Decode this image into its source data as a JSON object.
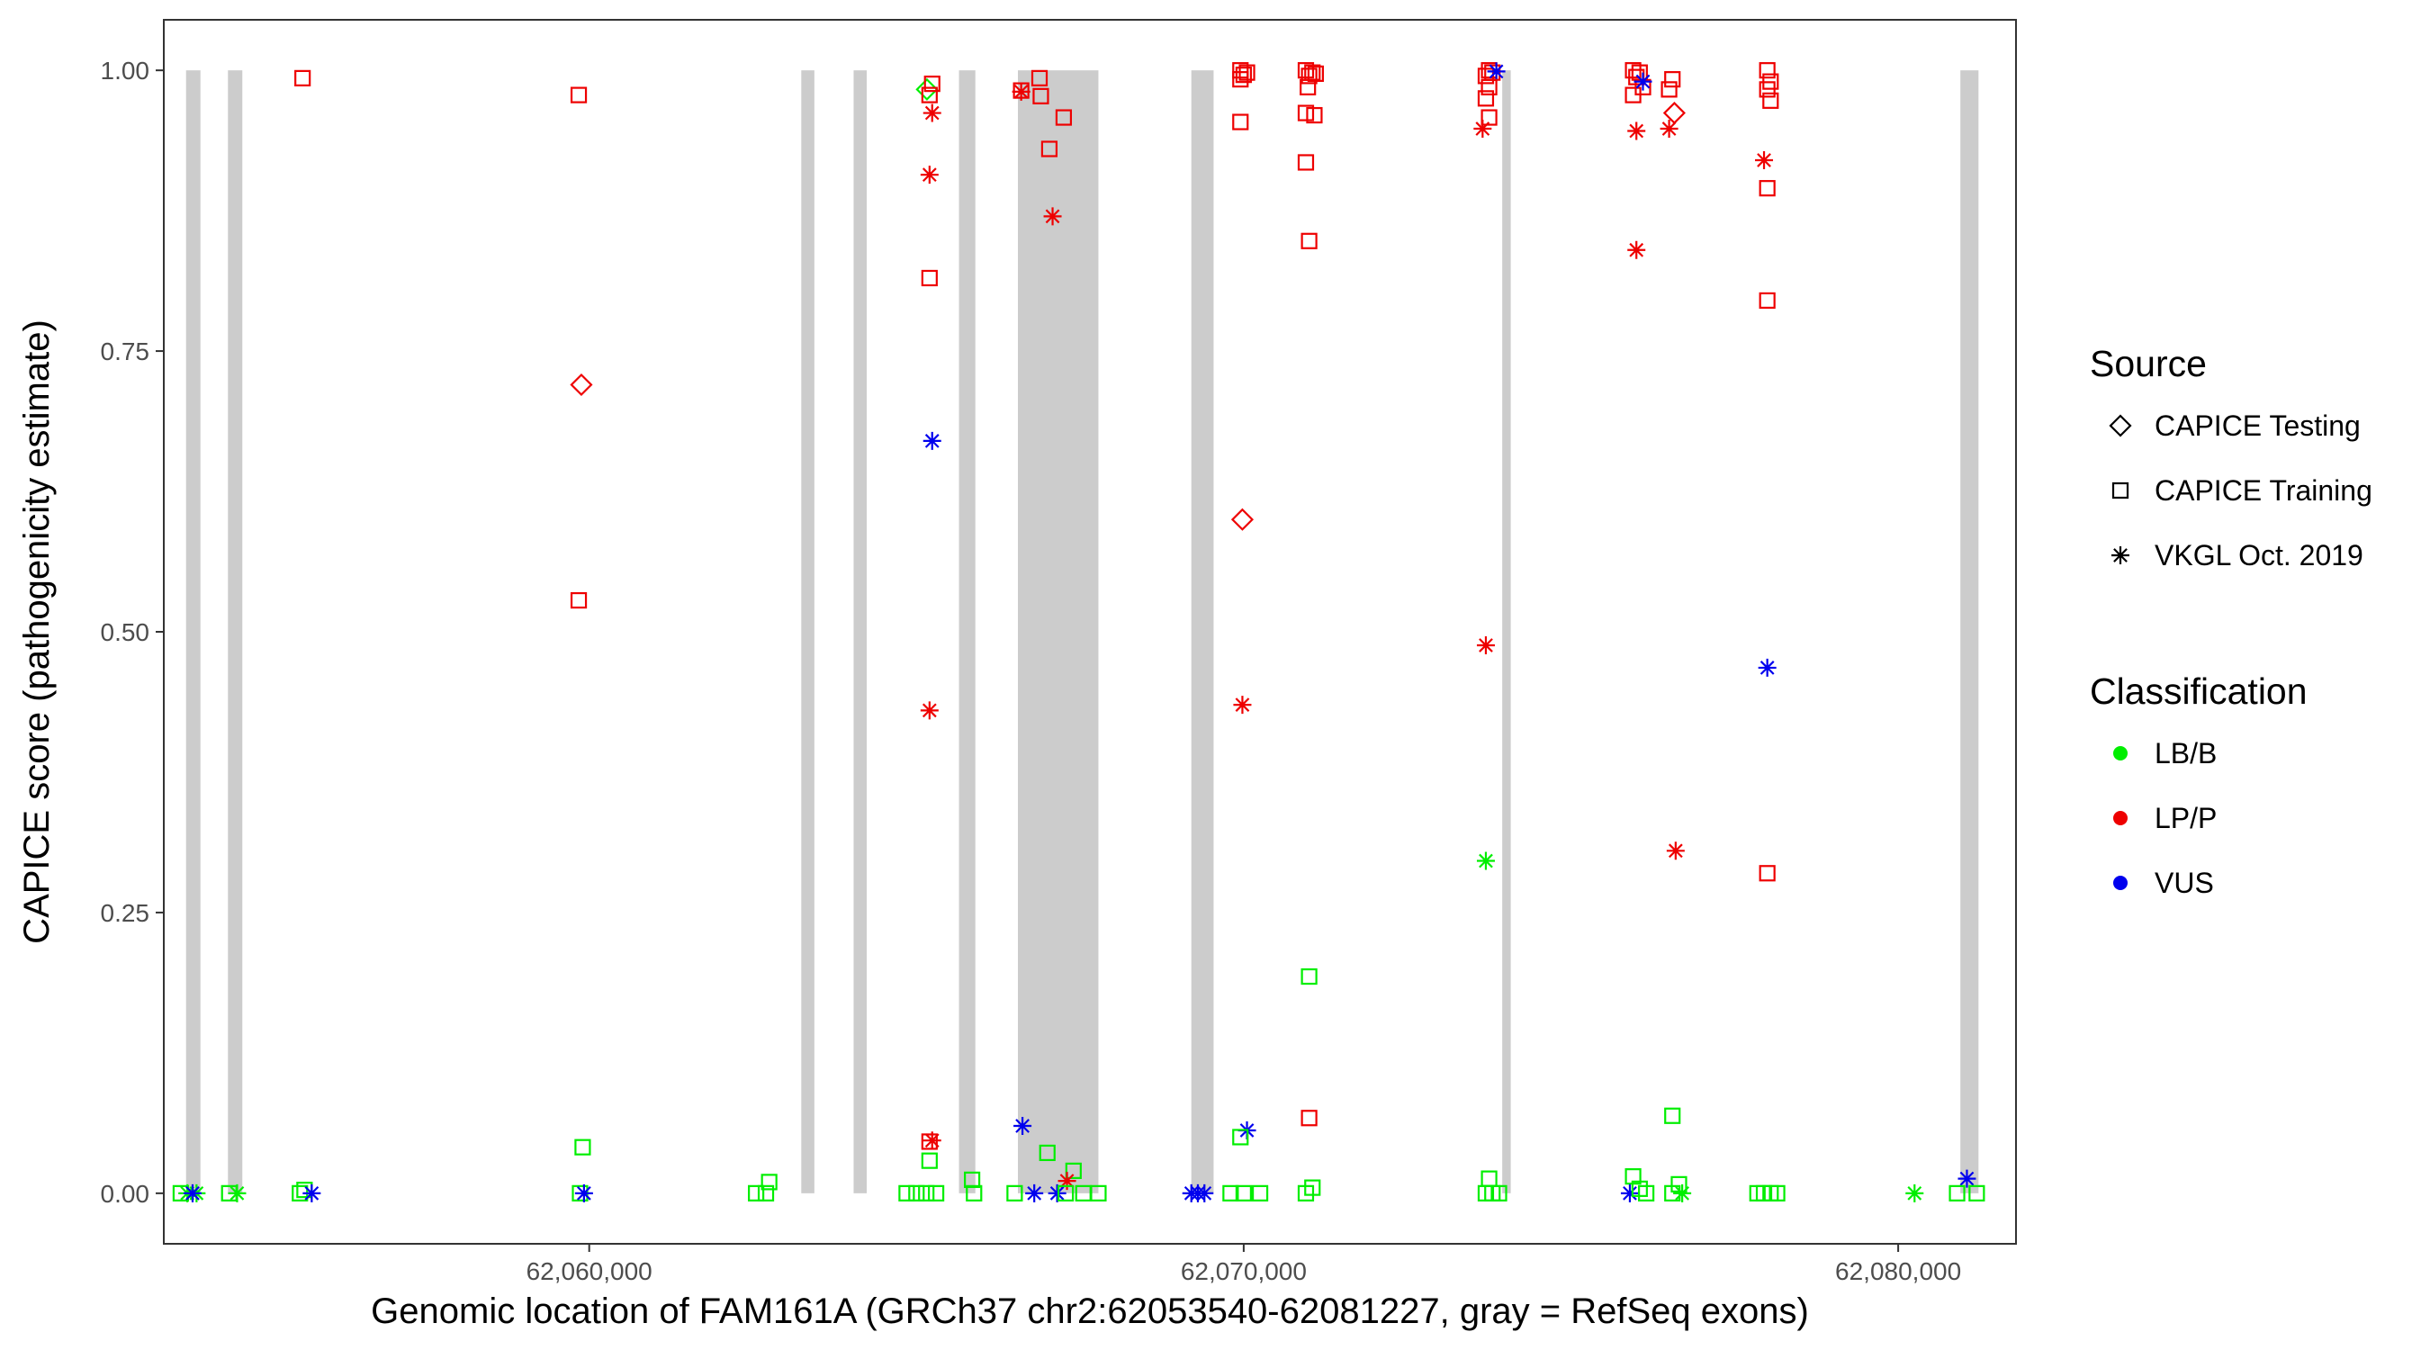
{
  "chart_data": {
    "type": "scatter",
    "xlabel": "Genomic location of FAM161A (GRCh37 chr2:62053540-62081227, gray = RefSeq exons)",
    "ylabel": "CAPICE score (pathogenicity estimate)",
    "xlim": [
      62053500,
      62081800
    ],
    "ylim": [
      -0.045,
      1.045
    ],
    "x_ticks": [
      62060000,
      62070000,
      62080000
    ],
    "x_tick_labels": [
      "62,060,000",
      "62,070,000",
      "62,080,000"
    ],
    "y_ticks": [
      0,
      0.25,
      0.5,
      0.75,
      1
    ],
    "y_tick_labels": [
      "0.00",
      "0.25",
      "0.50",
      "0.75",
      "1.00"
    ],
    "grid": false,
    "exon_color": "#cccccc",
    "exons": [
      [
        62053840,
        62054060
      ],
      [
        62054480,
        62054700
      ],
      [
        62063240,
        62063440
      ],
      [
        62064040,
        62064240
      ],
      [
        62065650,
        62065900
      ],
      [
        62066550,
        62067780
      ],
      [
        62069200,
        62069540
      ],
      [
        62073950,
        62074080
      ],
      [
        62080950,
        62081227
      ]
    ],
    "legends": {
      "source": {
        "title": "Source",
        "items": [
          {
            "label": "CAPICE Testing",
            "shape": "diamond"
          },
          {
            "label": "CAPICE Training",
            "shape": "square"
          },
          {
            "label": "VKGL Oct. 2019",
            "shape": "asterisk"
          }
        ]
      },
      "classification": {
        "title": "Classification",
        "items": [
          {
            "label": "LB/B",
            "color": "#00ee00"
          },
          {
            "label": "LP/P",
            "color": "#ee0000"
          },
          {
            "label": "VUS",
            "color": "#0000ee"
          }
        ]
      }
    },
    "classification_colors": {
      "LB/B": "#00ee00",
      "LP/P": "#ee0000",
      "VUS": "#0000ee"
    },
    "points": [
      {
        "x": 62055620,
        "y": 0.993,
        "cls": "LP/P",
        "src": "square"
      },
      {
        "x": 62059840,
        "y": 0.978,
        "cls": "LP/P",
        "src": "square"
      },
      {
        "x": 62059880,
        "y": 0.72,
        "cls": "LP/P",
        "src": "diamond"
      },
      {
        "x": 62059840,
        "y": 0.528,
        "cls": "LP/P",
        "src": "square"
      },
      {
        "x": 62059900,
        "y": 0.041,
        "cls": "LB/B",
        "src": "square"
      },
      {
        "x": 62065160,
        "y": 0.983,
        "cls": "LB/B",
        "src": "diamond"
      },
      {
        "x": 62065240,
        "y": 0.988,
        "cls": "LP/P",
        "src": "square"
      },
      {
        "x": 62065200,
        "y": 0.978,
        "cls": "LP/P",
        "src": "square"
      },
      {
        "x": 62065240,
        "y": 0.962,
        "cls": "LP/P",
        "src": "asterisk"
      },
      {
        "x": 62065200,
        "y": 0.907,
        "cls": "LP/P",
        "src": "asterisk"
      },
      {
        "x": 62065200,
        "y": 0.815,
        "cls": "LP/P",
        "src": "square"
      },
      {
        "x": 62065240,
        "y": 0.67,
        "cls": "VUS",
        "src": "asterisk"
      },
      {
        "x": 62065200,
        "y": 0.43,
        "cls": "LP/P",
        "src": "asterisk"
      },
      {
        "x": 62065240,
        "y": 0.047,
        "cls": "LP/P",
        "src": "asterisk"
      },
      {
        "x": 62065200,
        "y": 0.046,
        "cls": "LP/P",
        "src": "square"
      },
      {
        "x": 62065200,
        "y": 0.029,
        "cls": "LB/B",
        "src": "square"
      },
      {
        "x": 62066600,
        "y": 0.981,
        "cls": "LP/P",
        "src": "asterisk"
      },
      {
        "x": 62066600,
        "y": 0.982,
        "cls": "LP/P",
        "src": "square"
      },
      {
        "x": 62066880,
        "y": 0.993,
        "cls": "LP/P",
        "src": "square"
      },
      {
        "x": 62066900,
        "y": 0.977,
        "cls": "LP/P",
        "src": "square"
      },
      {
        "x": 62067250,
        "y": 0.958,
        "cls": "LP/P",
        "src": "square"
      },
      {
        "x": 62067030,
        "y": 0.93,
        "cls": "LP/P",
        "src": "square"
      },
      {
        "x": 62067080,
        "y": 0.87,
        "cls": "LP/P",
        "src": "asterisk"
      },
      {
        "x": 62066620,
        "y": 0.06,
        "cls": "VUS",
        "src": "asterisk"
      },
      {
        "x": 62067000,
        "y": 0.036,
        "cls": "LB/B",
        "src": "square"
      },
      {
        "x": 62067400,
        "y": 0.02,
        "cls": "LB/B",
        "src": "square"
      },
      {
        "x": 62067300,
        "y": 0.011,
        "cls": "LP/P",
        "src": "asterisk"
      },
      {
        "x": 62069950,
        "y": 1.0,
        "cls": "LP/P",
        "src": "square"
      },
      {
        "x": 62070000,
        "y": 0.996,
        "cls": "LP/P",
        "src": "square"
      },
      {
        "x": 62069950,
        "y": 0.992,
        "cls": "LP/P",
        "src": "square"
      },
      {
        "x": 62070050,
        "y": 0.998,
        "cls": "LP/P",
        "src": "square"
      },
      {
        "x": 62069950,
        "y": 0.954,
        "cls": "LP/P",
        "src": "square"
      },
      {
        "x": 62069980,
        "y": 0.6,
        "cls": "LP/P",
        "src": "diamond"
      },
      {
        "x": 62069980,
        "y": 0.435,
        "cls": "LP/P",
        "src": "asterisk"
      },
      {
        "x": 62070050,
        "y": 0.056,
        "cls": "VUS",
        "src": "asterisk"
      },
      {
        "x": 62069950,
        "y": 0.05,
        "cls": "LB/B",
        "src": "square"
      },
      {
        "x": 62070950,
        "y": 1.0,
        "cls": "LP/P",
        "src": "square"
      },
      {
        "x": 62071050,
        "y": 0.998,
        "cls": "LP/P",
        "src": "square"
      },
      {
        "x": 62071000,
        "y": 0.995,
        "cls": "LP/P",
        "src": "square"
      },
      {
        "x": 62071100,
        "y": 0.997,
        "cls": "LP/P",
        "src": "square"
      },
      {
        "x": 62070980,
        "y": 0.985,
        "cls": "LP/P",
        "src": "square"
      },
      {
        "x": 62070950,
        "y": 0.962,
        "cls": "LP/P",
        "src": "square"
      },
      {
        "x": 62071080,
        "y": 0.96,
        "cls": "LP/P",
        "src": "square"
      },
      {
        "x": 62070950,
        "y": 0.918,
        "cls": "LP/P",
        "src": "square"
      },
      {
        "x": 62071000,
        "y": 0.848,
        "cls": "LP/P",
        "src": "square"
      },
      {
        "x": 62071000,
        "y": 0.193,
        "cls": "LB/B",
        "src": "square"
      },
      {
        "x": 62071000,
        "y": 0.067,
        "cls": "LP/P",
        "src": "square"
      },
      {
        "x": 62073750,
        "y": 1.0,
        "cls": "LP/P",
        "src": "square"
      },
      {
        "x": 62073800,
        "y": 0.998,
        "cls": "LP/P",
        "src": "square"
      },
      {
        "x": 62073700,
        "y": 0.995,
        "cls": "LP/P",
        "src": "square"
      },
      {
        "x": 62073860,
        "y": 0.999,
        "cls": "VUS",
        "src": "asterisk"
      },
      {
        "x": 62073750,
        "y": 0.985,
        "cls": "LP/P",
        "src": "square"
      },
      {
        "x": 62073700,
        "y": 0.975,
        "cls": "LP/P",
        "src": "square"
      },
      {
        "x": 62073750,
        "y": 0.958,
        "cls": "LP/P",
        "src": "square"
      },
      {
        "x": 62073650,
        "y": 0.948,
        "cls": "LP/P",
        "src": "asterisk"
      },
      {
        "x": 62073700,
        "y": 0.488,
        "cls": "LP/P",
        "src": "asterisk"
      },
      {
        "x": 62073700,
        "y": 0.296,
        "cls": "LB/B",
        "src": "asterisk"
      },
      {
        "x": 62073750,
        "y": 0.013,
        "cls": "LB/B",
        "src": "square"
      },
      {
        "x": 62075950,
        "y": 1.0,
        "cls": "LP/P",
        "src": "square"
      },
      {
        "x": 62076050,
        "y": 0.998,
        "cls": "LP/P",
        "src": "square"
      },
      {
        "x": 62076000,
        "y": 0.994,
        "cls": "LP/P",
        "src": "square"
      },
      {
        "x": 62076100,
        "y": 0.985,
        "cls": "LP/P",
        "src": "square"
      },
      {
        "x": 62075950,
        "y": 0.978,
        "cls": "LP/P",
        "src": "square"
      },
      {
        "x": 62076100,
        "y": 0.99,
        "cls": "VUS",
        "src": "asterisk"
      },
      {
        "x": 62076000,
        "y": 0.946,
        "cls": "LP/P",
        "src": "asterisk"
      },
      {
        "x": 62076000,
        "y": 0.84,
        "cls": "LP/P",
        "src": "asterisk"
      },
      {
        "x": 62076550,
        "y": 0.992,
        "cls": "LP/P",
        "src": "square"
      },
      {
        "x": 62076500,
        "y": 0.983,
        "cls": "LP/P",
        "src": "square"
      },
      {
        "x": 62076580,
        "y": 0.962,
        "cls": "LP/P",
        "src": "diamond"
      },
      {
        "x": 62076500,
        "y": 0.948,
        "cls": "LP/P",
        "src": "asterisk"
      },
      {
        "x": 62076600,
        "y": 0.305,
        "cls": "LP/P",
        "src": "asterisk"
      },
      {
        "x": 62076550,
        "y": 0.069,
        "cls": "LB/B",
        "src": "square"
      },
      {
        "x": 62075950,
        "y": 0.015,
        "cls": "LB/B",
        "src": "square"
      },
      {
        "x": 62078000,
        "y": 1.0,
        "cls": "LP/P",
        "src": "square"
      },
      {
        "x": 62078050,
        "y": 0.99,
        "cls": "LP/P",
        "src": "square"
      },
      {
        "x": 62078000,
        "y": 0.983,
        "cls": "LP/P",
        "src": "square"
      },
      {
        "x": 62078050,
        "y": 0.973,
        "cls": "LP/P",
        "src": "square"
      },
      {
        "x": 62077950,
        "y": 0.92,
        "cls": "LP/P",
        "src": "asterisk"
      },
      {
        "x": 62078000,
        "y": 0.895,
        "cls": "LP/P",
        "src": "square"
      },
      {
        "x": 62078000,
        "y": 0.795,
        "cls": "LP/P",
        "src": "square"
      },
      {
        "x": 62078000,
        "y": 0.468,
        "cls": "VUS",
        "src": "asterisk"
      },
      {
        "x": 62078000,
        "y": 0.285,
        "cls": "LP/P",
        "src": "square"
      },
      {
        "x": 62081050,
        "y": 0.013,
        "cls": "VUS",
        "src": "asterisk"
      },
      {
        "x": 62053760,
        "y": 0.0,
        "cls": "LB/B",
        "src": "square"
      },
      {
        "x": 62053860,
        "y": 0.0,
        "cls": "LB/B",
        "src": "asterisk"
      },
      {
        "x": 62054000,
        "y": 0.0,
        "cls": "LB/B",
        "src": "asterisk"
      },
      {
        "x": 62053940,
        "y": 0.0,
        "cls": "VUS",
        "src": "asterisk"
      },
      {
        "x": 62054500,
        "y": 0.0,
        "cls": "LB/B",
        "src": "square"
      },
      {
        "x": 62054620,
        "y": 0.0,
        "cls": "LB/B",
        "src": "asterisk"
      },
      {
        "x": 62055580,
        "y": 0.0,
        "cls": "LB/B",
        "src": "square"
      },
      {
        "x": 62055650,
        "y": 0.003,
        "cls": "LB/B",
        "src": "square"
      },
      {
        "x": 62055760,
        "y": 0.0,
        "cls": "VUS",
        "src": "asterisk"
      },
      {
        "x": 62059860,
        "y": 0.0,
        "cls": "LB/B",
        "src": "square"
      },
      {
        "x": 62059920,
        "y": 0.0,
        "cls": "VUS",
        "src": "asterisk"
      },
      {
        "x": 62062550,
        "y": 0.0,
        "cls": "LB/B",
        "src": "square"
      },
      {
        "x": 62062700,
        "y": 0.0,
        "cls": "LB/B",
        "src": "square"
      },
      {
        "x": 62062750,
        "y": 0.01,
        "cls": "LB/B",
        "src": "square"
      },
      {
        "x": 62064850,
        "y": 0.0,
        "cls": "LB/B",
        "src": "square"
      },
      {
        "x": 62065000,
        "y": 0.0,
        "cls": "LB/B",
        "src": "square"
      },
      {
        "x": 62065150,
        "y": 0.0,
        "cls": "LB/B",
        "src": "square"
      },
      {
        "x": 62065300,
        "y": 0.0,
        "cls": "LB/B",
        "src": "square"
      },
      {
        "x": 62065850,
        "y": 0.012,
        "cls": "LB/B",
        "src": "square"
      },
      {
        "x": 62065880,
        "y": 0.0,
        "cls": "LB/B",
        "src": "square"
      },
      {
        "x": 62066500,
        "y": 0.0,
        "cls": "LB/B",
        "src": "square"
      },
      {
        "x": 62066800,
        "y": 0.0,
        "cls": "VUS",
        "src": "asterisk"
      },
      {
        "x": 62067150,
        "y": 0.0,
        "cls": "VUS",
        "src": "asterisk"
      },
      {
        "x": 62067280,
        "y": 0.0,
        "cls": "LB/B",
        "src": "square"
      },
      {
        "x": 62067550,
        "y": 0.0,
        "cls": "LB/B",
        "src": "square"
      },
      {
        "x": 62067780,
        "y": 0.0,
        "cls": "LB/B",
        "src": "square"
      },
      {
        "x": 62069200,
        "y": 0.0,
        "cls": "VUS",
        "src": "asterisk"
      },
      {
        "x": 62069300,
        "y": 0.0,
        "cls": "VUS",
        "src": "asterisk"
      },
      {
        "x": 62069400,
        "y": 0.0,
        "cls": "VUS",
        "src": "asterisk"
      },
      {
        "x": 62069800,
        "y": 0.0,
        "cls": "LB/B",
        "src": "square"
      },
      {
        "x": 62070000,
        "y": 0.0,
        "cls": "LB/B",
        "src": "square"
      },
      {
        "x": 62070250,
        "y": 0.0,
        "cls": "LB/B",
        "src": "square"
      },
      {
        "x": 62070950,
        "y": 0.0,
        "cls": "LB/B",
        "src": "square"
      },
      {
        "x": 62071050,
        "y": 0.005,
        "cls": "LB/B",
        "src": "square"
      },
      {
        "x": 62073700,
        "y": 0.0,
        "cls": "LB/B",
        "src": "square"
      },
      {
        "x": 62073800,
        "y": 0.0,
        "cls": "LB/B",
        "src": "square"
      },
      {
        "x": 62073900,
        "y": 0.0,
        "cls": "LB/B",
        "src": "square"
      },
      {
        "x": 62075900,
        "y": 0.0,
        "cls": "VUS",
        "src": "asterisk"
      },
      {
        "x": 62076050,
        "y": 0.004,
        "cls": "LB/B",
        "src": "square"
      },
      {
        "x": 62076150,
        "y": 0.0,
        "cls": "LB/B",
        "src": "square"
      },
      {
        "x": 62076550,
        "y": 0.0,
        "cls": "LB/B",
        "src": "square"
      },
      {
        "x": 62076650,
        "y": 0.008,
        "cls": "LB/B",
        "src": "square"
      },
      {
        "x": 62076700,
        "y": 0.0,
        "cls": "LB/B",
        "src": "asterisk"
      },
      {
        "x": 62077850,
        "y": 0.0,
        "cls": "LB/B",
        "src": "square"
      },
      {
        "x": 62077950,
        "y": 0.0,
        "cls": "LB/B",
        "src": "square"
      },
      {
        "x": 62078050,
        "y": 0.0,
        "cls": "LB/B",
        "src": "square"
      },
      {
        "x": 62078150,
        "y": 0.0,
        "cls": "LB/B",
        "src": "square"
      },
      {
        "x": 62080250,
        "y": 0.0,
        "cls": "LB/B",
        "src": "asterisk"
      },
      {
        "x": 62080900,
        "y": 0.0,
        "cls": "LB/B",
        "src": "square"
      },
      {
        "x": 62081200,
        "y": 0.0,
        "cls": "LB/B",
        "src": "square"
      }
    ]
  }
}
